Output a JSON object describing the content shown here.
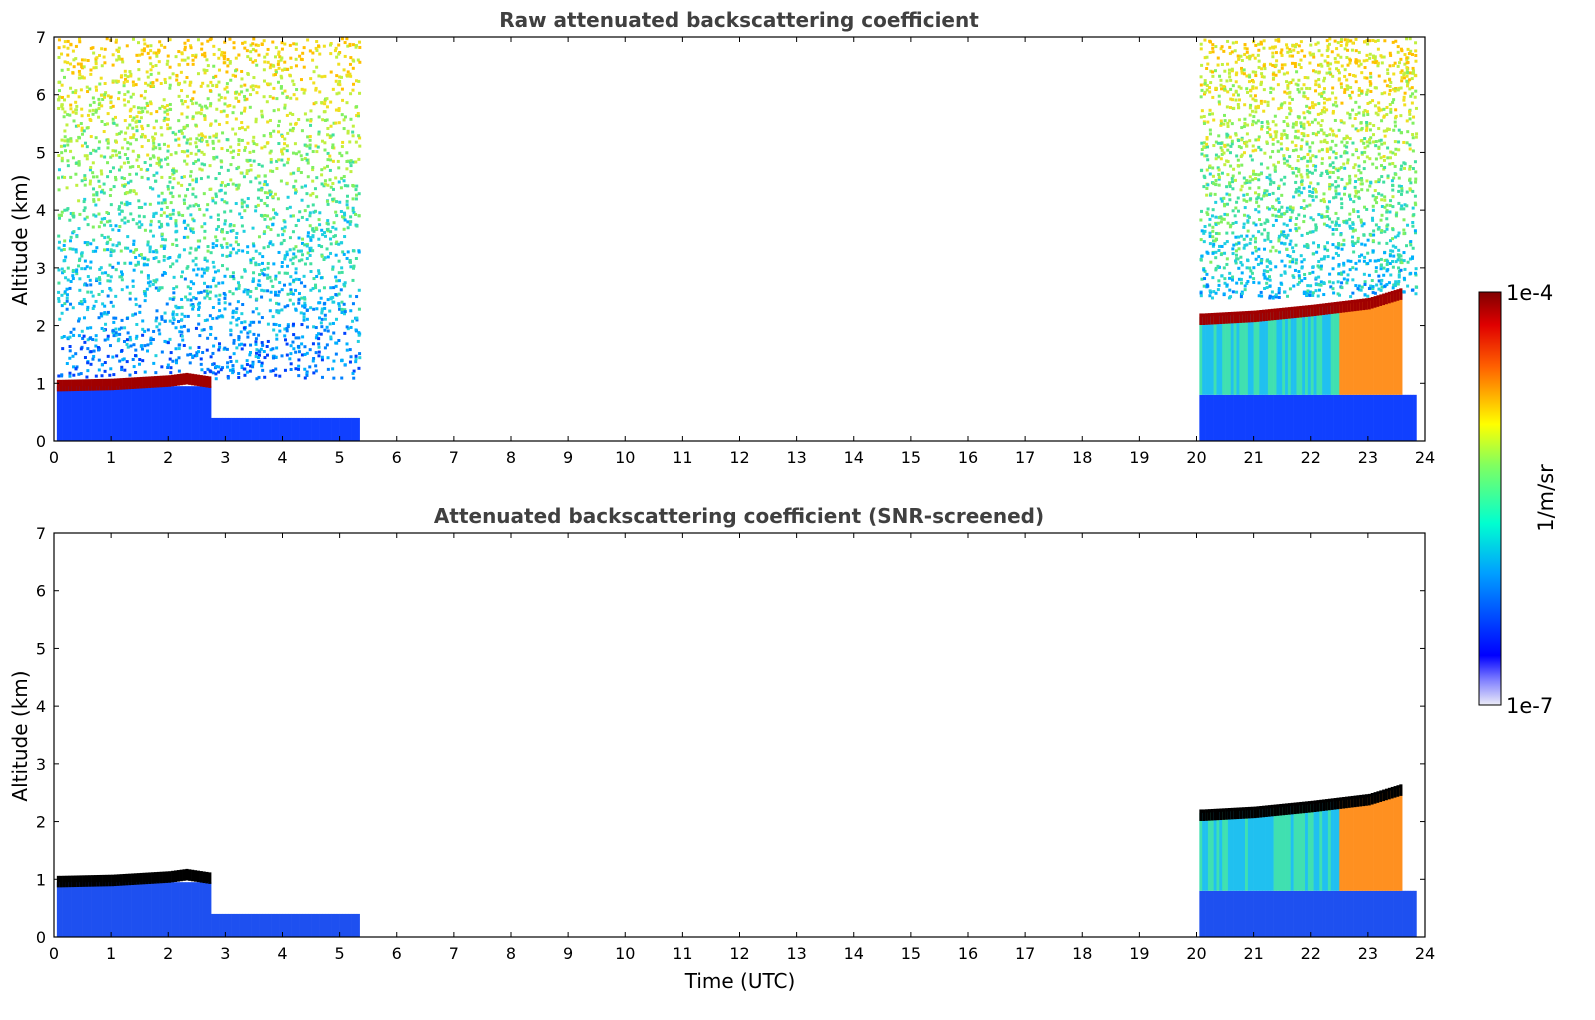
{
  "chart_data": [
    {
      "type": "heatmap",
      "title": "Raw attenuated backscattering coefficient",
      "xlabel": "",
      "ylabel": "Altitude (km)",
      "xlim": [
        0,
        24
      ],
      "ylim": [
        0,
        7
      ],
      "xticks": [
        "0",
        "1",
        "2",
        "3",
        "4",
        "5",
        "6",
        "7",
        "8",
        "9",
        "10",
        "11",
        "12",
        "13",
        "14",
        "15",
        "16",
        "17",
        "18",
        "19",
        "20",
        "21",
        "22",
        "23",
        "24"
      ],
      "yticks": [
        "0",
        "1",
        "2",
        "3",
        "4",
        "5",
        "6",
        "7"
      ],
      "data_segments_utc": [
        [
          0.05,
          5.3
        ],
        [
          20.05,
          23.85
        ]
      ],
      "cloud_layer_top_km": [
        {
          "time": 0.1,
          "alt": 1.0
        },
        {
          "time": 1.0,
          "alt": 1.02
        },
        {
          "time": 2.0,
          "alt": 1.08
        },
        {
          "time": 2.3,
          "alt": 1.12
        },
        {
          "time": 2.7,
          "alt": 1.06
        },
        {
          "time": 20.1,
          "alt": 2.15
        },
        {
          "time": 21.0,
          "alt": 2.2
        },
        {
          "time": 22.0,
          "alt": 2.3
        },
        {
          "time": 23.0,
          "alt": 2.42
        },
        {
          "time": 23.6,
          "alt": 2.6
        }
      ],
      "noise_mask": false
    },
    {
      "type": "heatmap",
      "title": "Attenuated backscattering coefficient (SNR-screened)",
      "xlabel": "Time (UTC)",
      "ylabel": "Altitude (km)",
      "xlim": [
        0,
        24
      ],
      "ylim": [
        0,
        7
      ],
      "xticks": [
        "0",
        "1",
        "2",
        "3",
        "4",
        "5",
        "6",
        "7",
        "8",
        "9",
        "10",
        "11",
        "12",
        "13",
        "14",
        "15",
        "16",
        "17",
        "18",
        "19",
        "20",
        "21",
        "22",
        "23",
        "24"
      ],
      "yticks": [
        "0",
        "1",
        "2",
        "3",
        "4",
        "5",
        "6",
        "7"
      ],
      "data_segments_utc": [
        [
          0.05,
          5.3
        ],
        [
          20.05,
          23.85
        ]
      ],
      "cloud_layer_top_km": [
        {
          "time": 0.1,
          "alt": 1.0
        },
        {
          "time": 1.0,
          "alt": 1.02
        },
        {
          "time": 2.0,
          "alt": 1.08
        },
        {
          "time": 2.3,
          "alt": 1.12
        },
        {
          "time": 2.7,
          "alt": 1.06
        },
        {
          "time": 20.1,
          "alt": 2.15
        },
        {
          "time": 21.0,
          "alt": 2.2
        },
        {
          "time": 22.0,
          "alt": 2.3
        },
        {
          "time": 23.0,
          "alt": 2.42
        },
        {
          "time": 23.6,
          "alt": 2.6
        }
      ],
      "noise_mask": true
    }
  ],
  "colorbar": {
    "label": "1/m/sr",
    "max_label": "1e-4",
    "min_label": "1e-7",
    "colormap": "jet",
    "colors": [
      "#e8e8f8",
      "#0000ff",
      "#00c0ff",
      "#40ffc0",
      "#ffff00",
      "#ff4000",
      "#800000"
    ]
  }
}
